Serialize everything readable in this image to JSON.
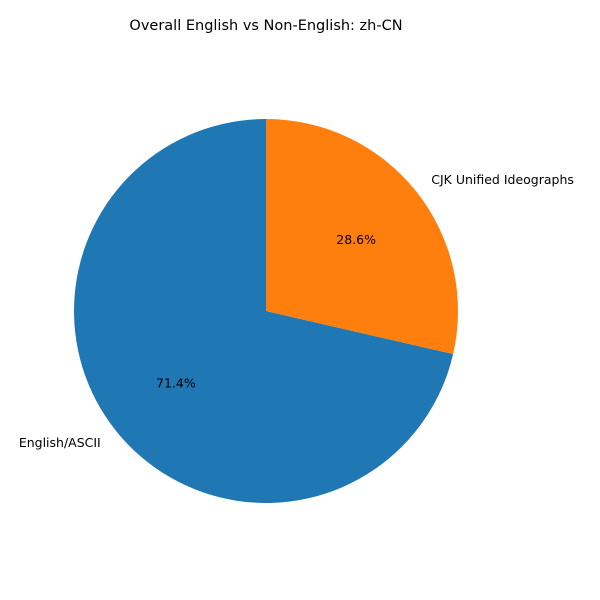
{
  "chart_data": {
    "type": "pie",
    "title": "Overall English vs Non-English: zh-CN",
    "labels": [
      "English/ASCII",
      "CJK Unified Ideographs"
    ],
    "values": [
      71.4,
      28.6
    ],
    "percent_labels": [
      "71.4%",
      "28.6%"
    ],
    "colors": [
      "#1f77b4",
      "#ff7f0e"
    ],
    "start_angle_deg": 90,
    "direction": "counterclockwise",
    "legend": "none"
  }
}
